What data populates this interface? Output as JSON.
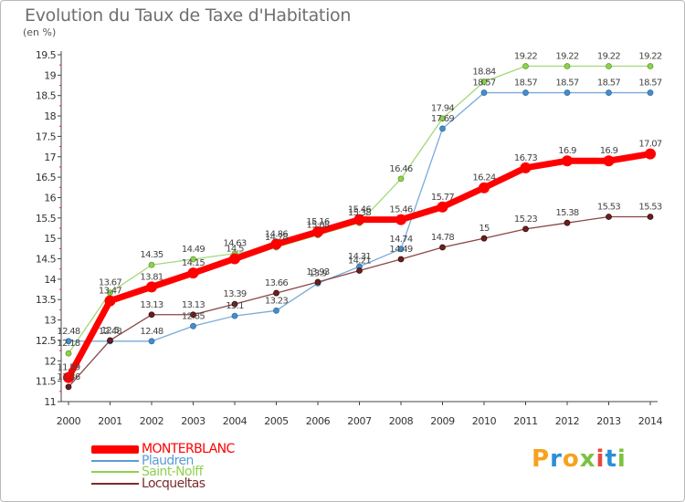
{
  "chart_data": {
    "type": "line",
    "title": "Evolution du Taux de Taxe d'Habitation",
    "unit_label": "(en %)",
    "x": [
      "2000",
      "2001",
      "2002",
      "2003",
      "2004",
      "2005",
      "2006",
      "2007",
      "2008",
      "2009",
      "2010",
      "2011",
      "2012",
      "2013",
      "2014"
    ],
    "yticks": [
      "11",
      "11.5",
      "12",
      "12.5",
      "13",
      "13.5",
      "14",
      "14.5",
      "15",
      "15.5",
      "16",
      "16.5",
      "17",
      "17.5",
      "18",
      "18.5",
      "19",
      "19.5"
    ],
    "ylim": [
      11,
      19.5
    ],
    "grid": false,
    "legend_position": "bottom-left",
    "series": [
      {
        "name": "MONTERBLANC",
        "color": "#ff0000",
        "values": [
          11.59,
          13.47,
          13.81,
          14.15,
          14.5,
          14.86,
          15.16,
          15.46,
          15.46,
          15.77,
          16.24,
          16.73,
          16.9,
          16.9,
          17.07
        ],
        "labels": [
          "11.59",
          "13.47",
          "13.81",
          "14.15",
          "14.5",
          "14.86",
          "15.16",
          "15.46",
          "15.46",
          "15.77",
          "16.24",
          "16.73",
          "16.9",
          "16.9",
          "17.07"
        ]
      },
      {
        "name": "Plaudren",
        "color": "#5b9bd5",
        "values": [
          12.48,
          12.48,
          12.48,
          12.85,
          13.1,
          13.23,
          13.9,
          14.31,
          14.74,
          17.69,
          18.57,
          18.57,
          18.57,
          18.57,
          18.57
        ],
        "labels": [
          "12.48",
          "12.48",
          "12.48",
          "12.85",
          "13.1",
          "13.23",
          "13.9",
          "14.31",
          "14.74",
          "17.69",
          "18.57",
          "18.57",
          "18.57",
          "18.57",
          "18.57"
        ]
      },
      {
        "name": "Saint-Nolff",
        "color": "#8fd14f",
        "values": [
          12.18,
          13.67,
          14.35,
          14.49,
          14.63,
          14.78,
          15.08,
          15.38,
          16.46,
          17.94,
          18.84,
          19.22,
          19.22,
          19.22,
          19.22
        ],
        "labels": [
          "12.18",
          "13.67",
          "14.35",
          "14.49",
          "14.63",
          "14.78",
          "15.08",
          "15.38",
          "16.46",
          "17.94",
          "18.84",
          "19.22",
          "19.22",
          "19.22",
          "19.22"
        ]
      },
      {
        "name": "Locqueltas",
        "color": "#7b2c2c",
        "values": [
          11.36,
          12.5,
          13.13,
          13.13,
          13.39,
          13.66,
          13.93,
          14.21,
          14.49,
          14.78,
          15.0,
          15.23,
          15.38,
          15.53,
          15.53
        ],
        "labels": [
          "11.36",
          "12.5",
          "13.13",
          "13.13",
          "13.39",
          "13.66",
          "13.93",
          "14.21",
          "14.49",
          "14.78",
          "15",
          "15.23",
          "15.38",
          "15.53",
          "15.53"
        ]
      }
    ]
  },
  "logo": {
    "text": "Proxiti",
    "letters": [
      "P",
      "r",
      "o",
      "x",
      "i",
      "t",
      "i"
    ],
    "colors": [
      "#f7a21b",
      "#2b8fd6",
      "#f7a21b",
      "#7cc242",
      "#e8473c",
      "#2b8fd6",
      "#7cc242"
    ]
  }
}
